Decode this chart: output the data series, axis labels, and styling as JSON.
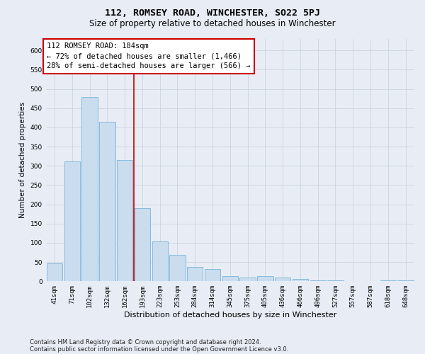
{
  "title": "112, ROMSEY ROAD, WINCHESTER, SO22 5PJ",
  "subtitle": "Size of property relative to detached houses in Winchester",
  "xlabel": "Distribution of detached houses by size in Winchester",
  "ylabel": "Number of detached properties",
  "bar_labels": [
    "41sqm",
    "71sqm",
    "102sqm",
    "132sqm",
    "162sqm",
    "193sqm",
    "223sqm",
    "253sqm",
    "284sqm",
    "314sqm",
    "345sqm",
    "375sqm",
    "405sqm",
    "436sqm",
    "466sqm",
    "496sqm",
    "527sqm",
    "557sqm",
    "587sqm",
    "618sqm",
    "648sqm"
  ],
  "bar_values": [
    47,
    311,
    480,
    415,
    315,
    190,
    103,
    68,
    38,
    32,
    13,
    10,
    13,
    10,
    6,
    3,
    2,
    1,
    0,
    3,
    2
  ],
  "bar_color": "#c9ddef",
  "bar_edge_color": "#7ab4d8",
  "grid_color": "#ccd5e3",
  "annotation_box_text": "112 ROMSEY ROAD: 184sqm\n← 72% of detached houses are smaller (1,466)\n28% of semi-detached houses are larger (566) →",
  "annotation_box_color": "#ffffff",
  "annotation_box_edge_color": "#cc0000",
  "vline_color": "#cc0000",
  "background_color": "#e8edf5",
  "ylim": [
    0,
    630
  ],
  "yticks": [
    0,
    50,
    100,
    150,
    200,
    250,
    300,
    350,
    400,
    450,
    500,
    550,
    600
  ],
  "footer_line1": "Contains HM Land Registry data © Crown copyright and database right 2024.",
  "footer_line2": "Contains public sector information licensed under the Open Government Licence v3.0.",
  "title_fontsize": 9.5,
  "subtitle_fontsize": 8.5,
  "xlabel_fontsize": 8,
  "ylabel_fontsize": 7.5,
  "tick_fontsize": 6.5,
  "annotation_fontsize": 7.5,
  "footer_fontsize": 6
}
